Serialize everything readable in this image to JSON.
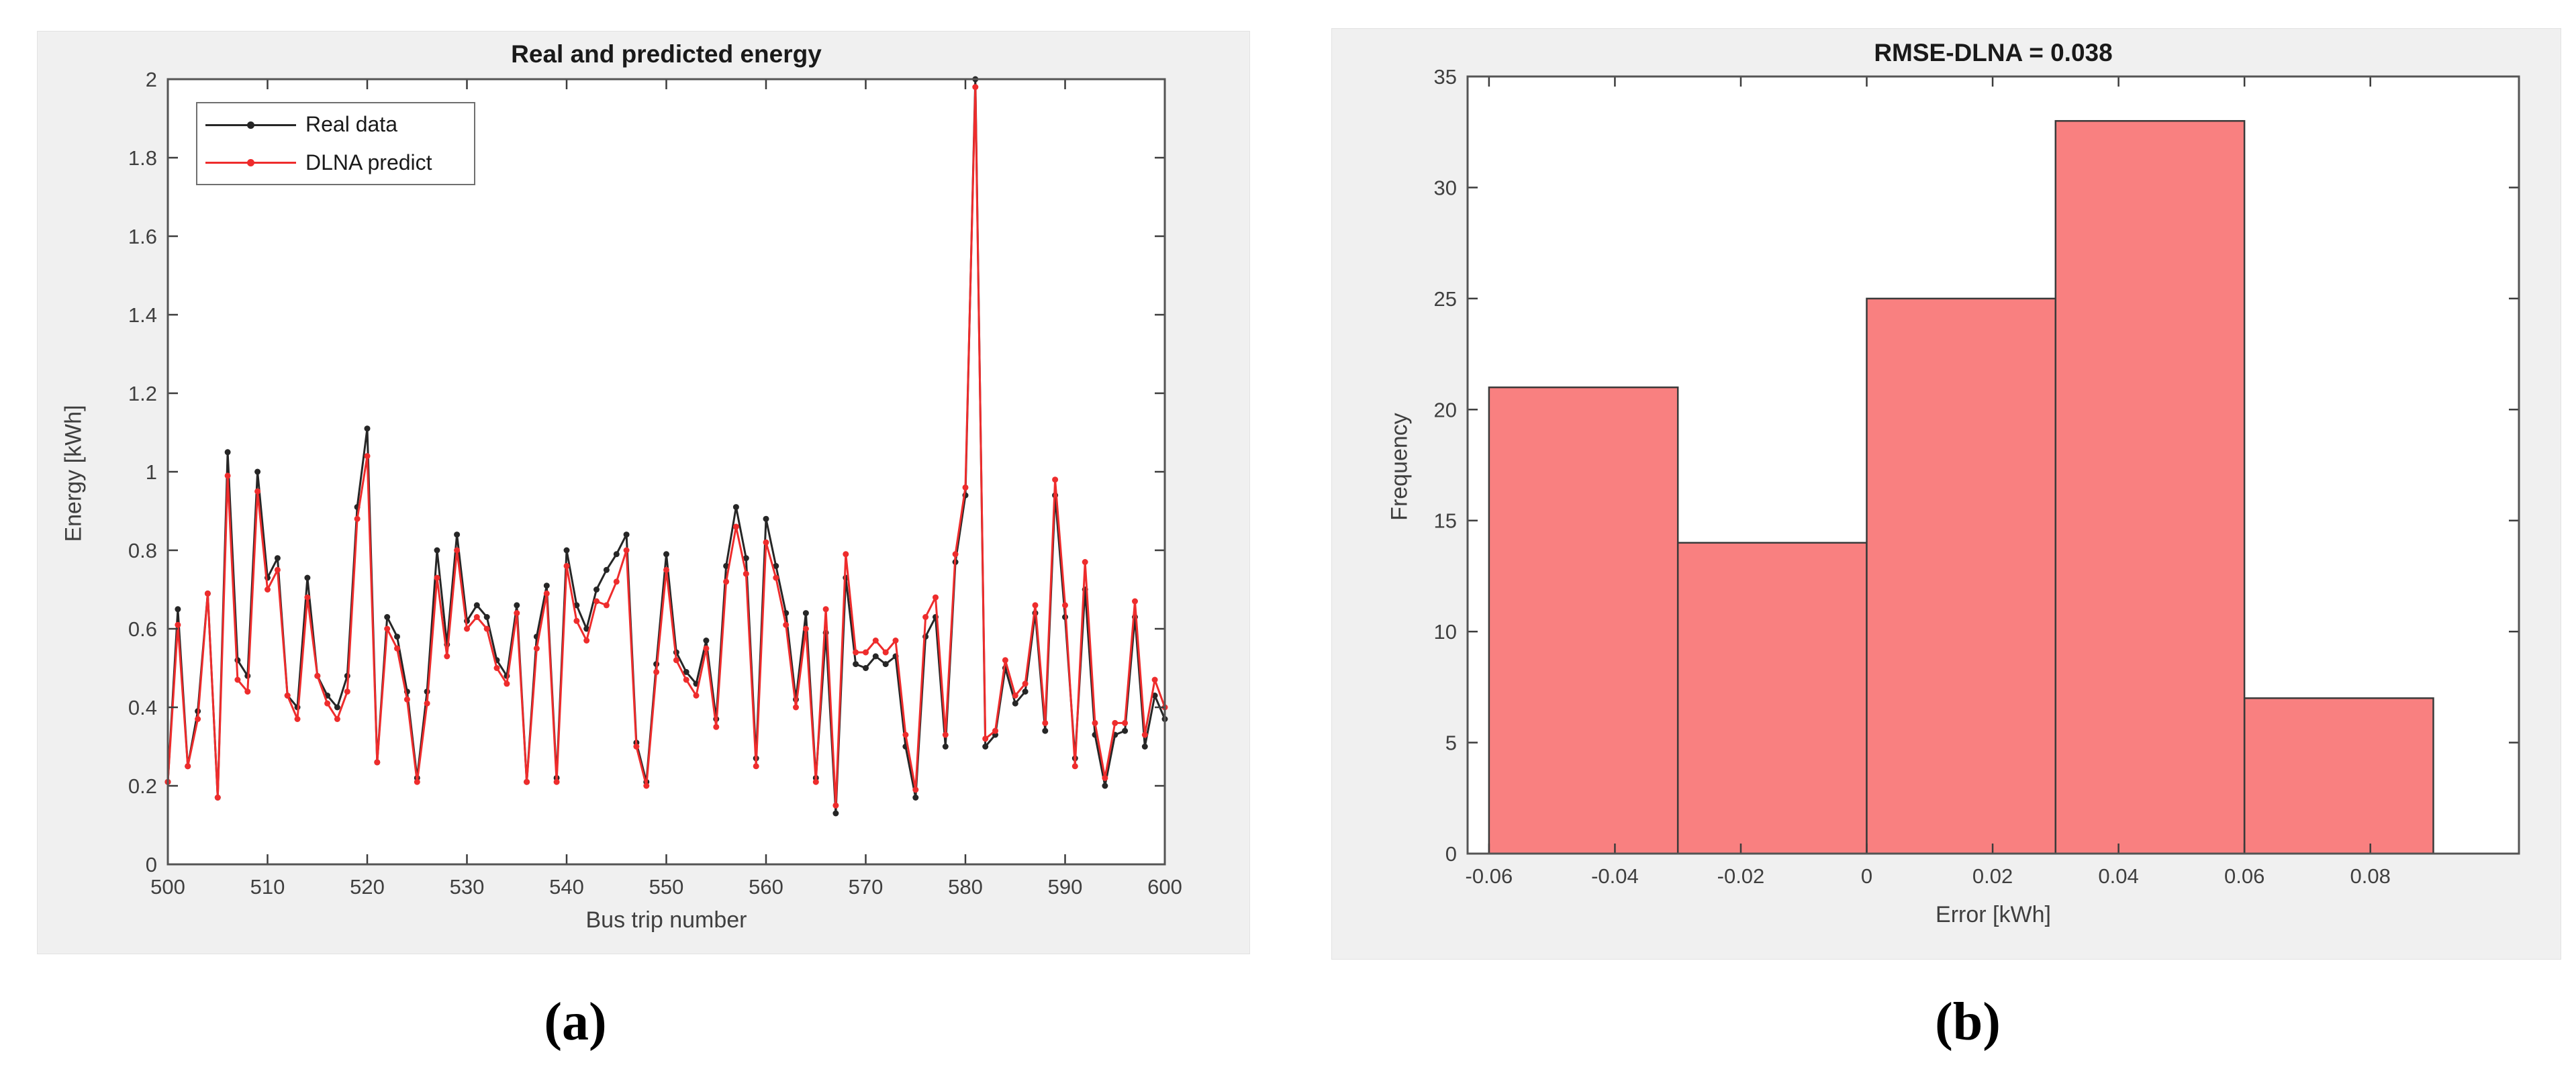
{
  "figure": {
    "caption_a": "(a)",
    "caption_b": "(b)"
  },
  "colors": {
    "panel_bg": "#f0f0f0",
    "plot_bg": "#ffffff",
    "frame": "#545454",
    "tick": "#3c3c3c",
    "tick_label": "#3f3f3f",
    "title": "#1a1a1a",
    "real_series": "#262626",
    "predict_series": "#ee2c2c",
    "bar_fill": "#f98080",
    "bar_edge": "#3a3a3a"
  },
  "chart_data": [
    {
      "id": "a",
      "type": "line",
      "title": "Real and predicted energy",
      "xlabel": "Bus trip number",
      "ylabel": "Energy [kWh]",
      "xlim": [
        500,
        600
      ],
      "ylim": [
        0,
        2
      ],
      "grid": false,
      "x_tick_values": [
        500,
        510,
        520,
        530,
        540,
        550,
        560,
        570,
        580,
        590,
        600
      ],
      "x_tick_labels": [
        "500",
        "510",
        "520",
        "530",
        "540",
        "550",
        "560",
        "570",
        "580",
        "590",
        "600"
      ],
      "y_tick_values": [
        0,
        0.2,
        0.4,
        0.6,
        0.8,
        1,
        1.2,
        1.4,
        1.6,
        1.8,
        2
      ],
      "y_tick_labels": [
        "0",
        "0.2",
        "0.4",
        "0.6",
        "0.8",
        "1",
        "1.2",
        "1.4",
        "1.6",
        "1.8",
        "2"
      ],
      "x_start": 500,
      "x_step": 1,
      "legend": {
        "position": "top-left",
        "entries": [
          {
            "label": "Real data",
            "color": "#262626"
          },
          {
            "label": "DLNA predict",
            "color": "#ee2c2c"
          }
        ]
      },
      "series": [
        {
          "name": "Real data",
          "color": "#262626",
          "values": [
            0.21,
            0.65,
            0.25,
            0.39,
            0.69,
            0.17,
            1.05,
            0.52,
            0.48,
            1.0,
            0.73,
            0.78,
            0.43,
            0.4,
            0.73,
            0.48,
            0.43,
            0.4,
            0.48,
            0.91,
            1.11,
            0.26,
            0.63,
            0.58,
            0.44,
            0.22,
            0.44,
            0.8,
            0.56,
            0.84,
            0.62,
            0.66,
            0.63,
            0.52,
            0.48,
            0.66,
            0.21,
            0.58,
            0.71,
            0.22,
            0.8,
            0.66,
            0.6,
            0.7,
            0.75,
            0.79,
            0.84,
            0.31,
            0.21,
            0.51,
            0.79,
            0.54,
            0.49,
            0.46,
            0.57,
            0.37,
            0.76,
            0.91,
            0.78,
            0.27,
            0.88,
            0.76,
            0.64,
            0.42,
            0.64,
            0.22,
            0.59,
            0.13,
            0.73,
            0.51,
            0.5,
            0.53,
            0.51,
            0.53,
            0.3,
            0.17,
            0.58,
            0.63,
            0.3,
            0.77,
            0.94,
            2.0,
            0.3,
            0.33,
            0.5,
            0.41,
            0.44,
            0.64,
            0.34,
            0.94,
            0.63,
            0.27,
            0.7,
            0.33,
            0.2,
            0.33,
            0.34,
            0.63,
            0.3,
            0.43,
            0.37
          ]
        },
        {
          "name": "DLNA predict",
          "color": "#ee2c2c",
          "values": [
            0.21,
            0.61,
            0.25,
            0.37,
            0.69,
            0.17,
            0.99,
            0.47,
            0.44,
            0.95,
            0.7,
            0.75,
            0.43,
            0.37,
            0.68,
            0.48,
            0.41,
            0.37,
            0.44,
            0.88,
            1.04,
            0.26,
            0.6,
            0.55,
            0.42,
            0.21,
            0.41,
            0.73,
            0.53,
            0.8,
            0.6,
            0.63,
            0.6,
            0.5,
            0.46,
            0.64,
            0.21,
            0.55,
            0.69,
            0.21,
            0.76,
            0.62,
            0.57,
            0.67,
            0.66,
            0.72,
            0.8,
            0.3,
            0.2,
            0.49,
            0.75,
            0.52,
            0.47,
            0.43,
            0.55,
            0.35,
            0.72,
            0.86,
            0.74,
            0.25,
            0.82,
            0.73,
            0.61,
            0.4,
            0.6,
            0.21,
            0.65,
            0.15,
            0.79,
            0.54,
            0.54,
            0.57,
            0.54,
            0.57,
            0.33,
            0.19,
            0.63,
            0.68,
            0.33,
            0.79,
            0.96,
            1.98,
            0.32,
            0.34,
            0.52,
            0.43,
            0.46,
            0.66,
            0.36,
            0.98,
            0.66,
            0.25,
            0.77,
            0.36,
            0.22,
            0.36,
            0.36,
            0.67,
            0.33,
            0.47,
            0.4
          ]
        }
      ]
    },
    {
      "id": "b",
      "type": "histogram",
      "title": "RMSE-DLNA = 0.038",
      "xlabel": "Error [kWh]",
      "ylabel": "Frequency",
      "xlim": [
        -0.0634,
        0.1036
      ],
      "ylim": [
        0,
        35
      ],
      "grid": false,
      "bins": {
        "start": -0.06,
        "width": 0.03,
        "frequencies": [
          21,
          14,
          25,
          33,
          7
        ]
      },
      "bin_edges": [
        -0.06,
        -0.03,
        0,
        0.03,
        0.06,
        0.09
      ],
      "x_tick_values": [
        -0.06,
        -0.04,
        -0.02,
        0,
        0.02,
        0.04,
        0.06,
        0.08
      ],
      "x_tick_labels": [
        "-0.06",
        "-0.04",
        "-0.02",
        "0",
        "0.02",
        "0.04",
        "0.06",
        "0.08"
      ],
      "y_tick_values": [
        0,
        5,
        10,
        15,
        20,
        25,
        30,
        35
      ],
      "y_tick_labels": [
        "0",
        "5",
        "10",
        "15",
        "20",
        "25",
        "30",
        "35"
      ]
    }
  ]
}
